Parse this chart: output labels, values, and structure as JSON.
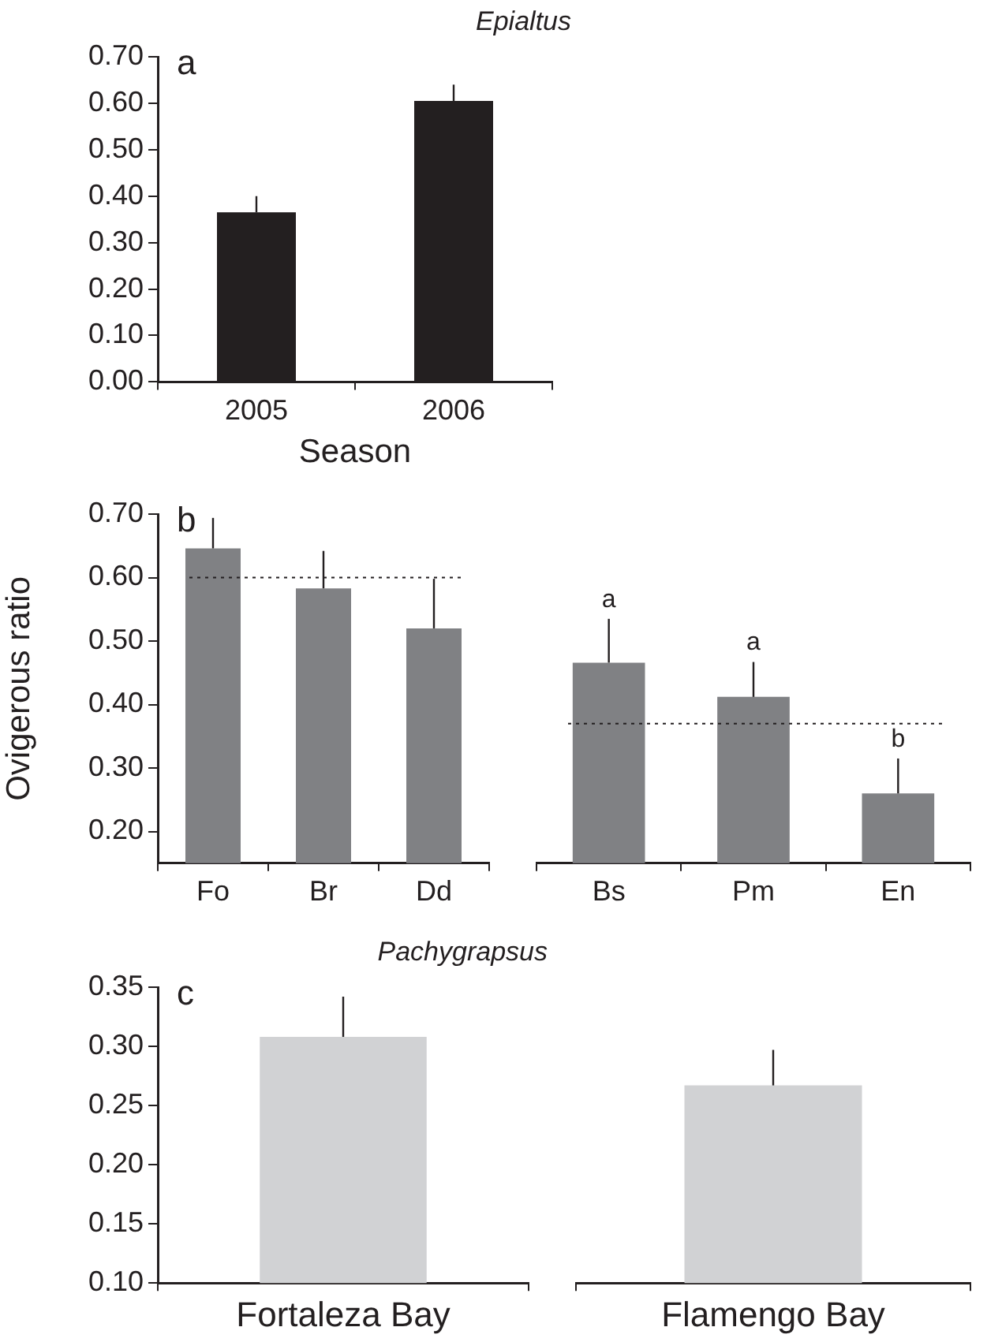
{
  "chart_data": [
    {
      "type": "bar",
      "title": "Epialtus",
      "xlabel": "Season",
      "categories": [
        "2005",
        "2006"
      ],
      "values": [
        0.365,
        0.605
      ],
      "color": "#231f20",
      "errors": [
        [
          0.365,
          0.4
        ],
        [
          0.605,
          0.64
        ]
      ],
      "ylim": [
        0,
        0.7
      ],
      "yticks": [
        {
          "value": 0,
          "label": "0.00"
        },
        {
          "value": 0.1,
          "label": "0.10"
        },
        {
          "value": 0.2,
          "label": "0.20"
        },
        {
          "value": 0.3,
          "label": "0.30"
        },
        {
          "value": 0.4,
          "label": "0.40"
        },
        {
          "value": 0.5,
          "label": "0.50"
        },
        {
          "value": 0.6,
          "label": "0.60"
        },
        {
          "value": 0.7,
          "label": "0.70"
        }
      ],
      "annotations": [
        "a"
      ]
    },
    {
      "type": "bar",
      "ylabel": "Ovigerous ratio",
      "categories": [
        "Fo",
        "Br",
        "Dd"
      ],
      "values": [
        0.646,
        0.583,
        0.52
      ],
      "color": "#808184",
      "errors": [
        [
          0.646,
          0.694
        ],
        [
          0.583,
          0.642
        ],
        [
          0.52,
          0.598
        ]
      ],
      "ylim": [
        0.15,
        0.7
      ],
      "yticks": [
        {
          "value": 0.2,
          "label": "0.20"
        },
        {
          "value": 0.3,
          "label": "0.30"
        },
        {
          "value": 0.4,
          "label": "0.40"
        },
        {
          "value": 0.5,
          "label": "0.50"
        },
        {
          "value": 0.6,
          "label": "0.60"
        },
        {
          "value": 0.7,
          "label": "0.70"
        }
      ],
      "ref_lines": [
        {
          "axis": "y",
          "value": 0.6,
          "line_style": "dotted"
        }
      ],
      "annotations": [
        "b"
      ]
    },
    {
      "type": "bar",
      "categories": [
        "Bs",
        "Pm",
        "En"
      ],
      "values": [
        0.466,
        0.412,
        0.26
      ],
      "color": "#808184",
      "errors": [
        [
          0.466,
          0.535
        ],
        [
          0.412,
          0.467
        ],
        [
          0.26,
          0.315
        ]
      ],
      "ylim": [
        0.15,
        0.7
      ],
      "tick_labels": "x",
      "ref_lines": [
        {
          "axis": "y",
          "value": 0.37,
          "line_style": "dotted"
        }
      ],
      "annotations": [
        {
          "text": "a",
          "x": "Bs",
          "y": 0.535
        },
        {
          "text": "a",
          "x": "Pm",
          "y": 0.467
        },
        {
          "text": "b",
          "x": "En",
          "y": 0.315
        }
      ]
    },
    {
      "type": "bar",
      "title": "Pachygrapsus",
      "categories": [
        "Fortaleza Bay"
      ],
      "values": [
        0.308
      ],
      "color": "#d1d2d4",
      "errors": [
        [
          0.308,
          0.342
        ]
      ],
      "ylim": [
        0.1,
        0.35
      ],
      "yticks": [
        {
          "value": 0.1,
          "label": "0.10"
        },
        {
          "value": 0.15,
          "label": "0.15"
        },
        {
          "value": 0.2,
          "label": "0.20"
        },
        {
          "value": 0.25,
          "label": "0.25"
        },
        {
          "value": 0.3,
          "label": "0.30"
        },
        {
          "value": 0.35,
          "label": "0.35"
        }
      ],
      "annotations": [
        "c"
      ]
    },
    {
      "type": "bar",
      "categories": [
        "Flamengo Bay"
      ],
      "values": [
        0.267
      ],
      "color": "#d1d2d4",
      "errors": [
        [
          0.267,
          0.297
        ]
      ],
      "ylim": [
        0.1,
        0.35
      ],
      "tick_labels": "x"
    }
  ]
}
